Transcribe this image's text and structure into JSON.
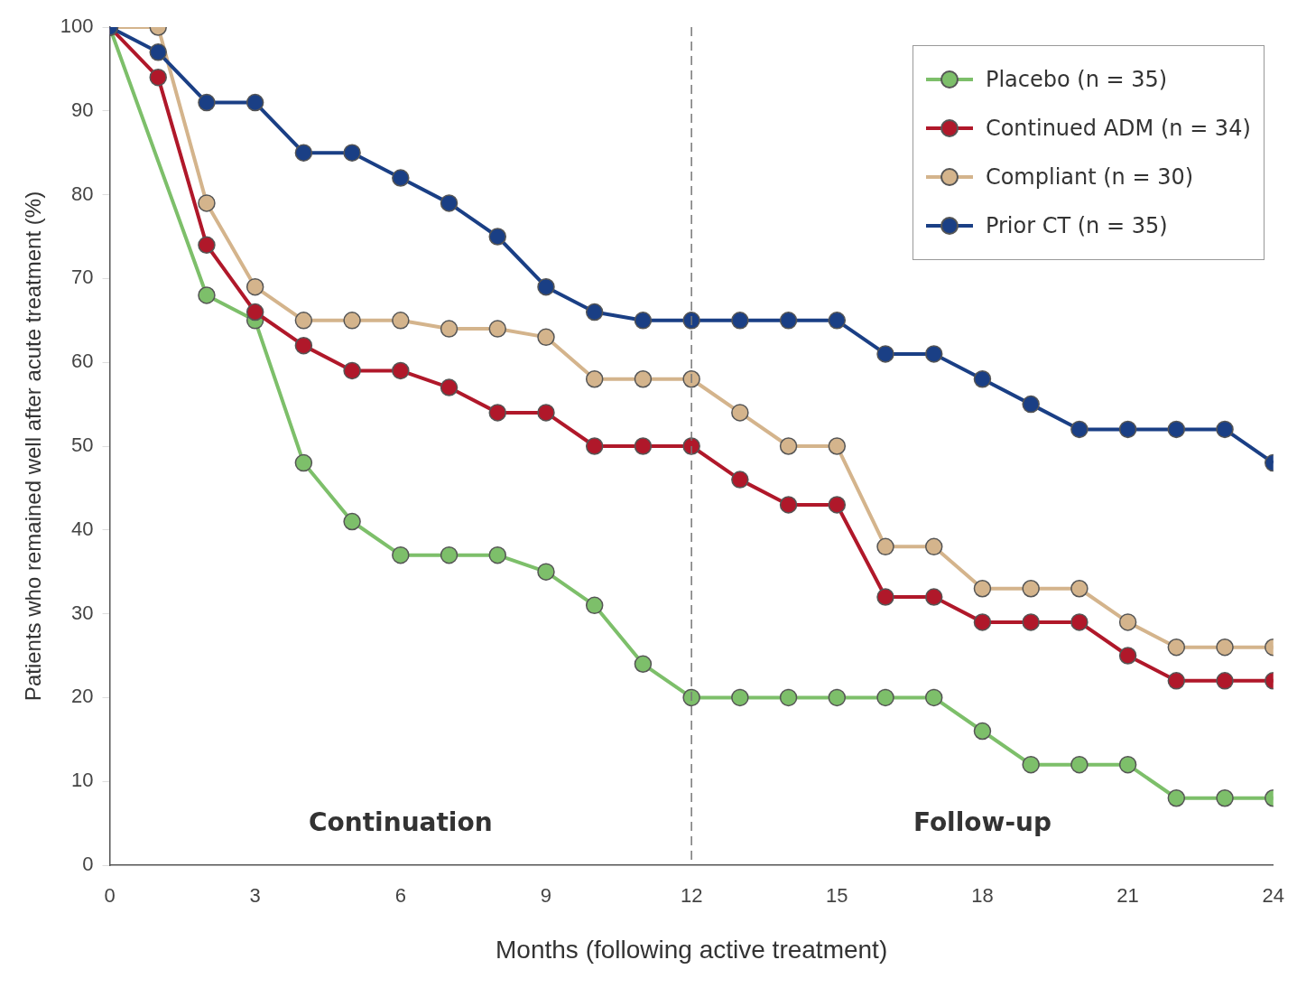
{
  "chart_data": {
    "type": "line",
    "xlabel": "Months (following active treatment)",
    "ylabel": "Patients who remained well after acute treatment (%)",
    "x": [
      0,
      1,
      2,
      3,
      4,
      5,
      6,
      7,
      8,
      9,
      10,
      11,
      12,
      13,
      14,
      15,
      16,
      17,
      18,
      19,
      20,
      21,
      22,
      23,
      24
    ],
    "series": [
      {
        "name": "Placebo (n = 35)",
        "color": "#7dbf6a",
        "values": [
          100,
          null,
          68,
          65,
          48,
          41,
          37,
          37,
          37,
          35,
          31,
          24,
          20,
          20,
          20,
          20,
          20,
          20,
          16,
          12,
          12,
          12,
          8,
          8,
          8
        ]
      },
      {
        "name": "Continued ADM (n = 34)",
        "color": "#b0182a",
        "values": [
          100,
          94,
          74,
          66,
          62,
          59,
          59,
          57,
          54,
          54,
          50,
          50,
          50,
          46,
          43,
          43,
          32,
          32,
          29,
          29,
          29,
          25,
          22,
          22,
          22
        ]
      },
      {
        "name": "Compliant (n = 30)",
        "color": "#d4b48c",
        "values": [
          100,
          100,
          79,
          69,
          65,
          65,
          65,
          64,
          64,
          63,
          58,
          58,
          58,
          54,
          50,
          50,
          38,
          38,
          33,
          33,
          33,
          29,
          26,
          26,
          26
        ]
      },
      {
        "name": "Prior CT (n = 35)",
        "color": "#1a3f85",
        "values": [
          100,
          97,
          91,
          91,
          85,
          85,
          82,
          79,
          75,
          69,
          66,
          65,
          65,
          65,
          65,
          65,
          61,
          61,
          58,
          55,
          52,
          52,
          52,
          52,
          48
        ]
      }
    ],
    "xlim": [
      0,
      24
    ],
    "xticks": [
      0,
      3,
      6,
      9,
      12,
      15,
      18,
      21,
      24
    ],
    "ylim": [
      0,
      100
    ],
    "yticks": [
      0,
      10,
      20,
      30,
      40,
      50,
      60,
      70,
      80,
      90,
      100
    ],
    "ref_lines": [
      {
        "axis": "x",
        "value": 12,
        "line_style": "dashed",
        "color": "#777777"
      }
    ],
    "annotations": [
      "Continuation",
      "Follow-up"
    ],
    "grid": false,
    "legend": "top right",
    "marker": "circle",
    "line_style": "solid"
  }
}
